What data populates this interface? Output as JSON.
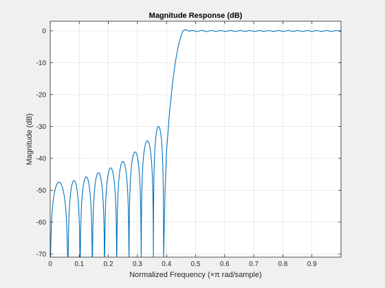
{
  "chart_data": {
    "type": "line",
    "title": "Magnitude Response (dB)",
    "xlabel": "Normalized Frequency (×π rad/sample)",
    "ylabel": "Magnitude (dB)",
    "xlim": [
      0,
      1
    ],
    "ylim": [
      -71,
      3
    ],
    "xticks": [
      0,
      0.1,
      0.2,
      0.3,
      0.4,
      0.5,
      0.6,
      0.7,
      0.8,
      0.9
    ],
    "xtick_labels": [
      "0",
      "0.1",
      "0.2",
      "0.3",
      "0.4",
      "0.5",
      "0.6",
      "0.7",
      "0.8",
      "0.9"
    ],
    "yticks": [
      0,
      -10,
      -20,
      -30,
      -40,
      -50,
      -60,
      -70
    ],
    "ytick_labels": [
      "0",
      "-10",
      "-20",
      "-30",
      "-40",
      "-50",
      "-60",
      "-70"
    ],
    "grid": true,
    "line_color": "#0072bd",
    "stopband_lobes": [
      {
        "x": [
          0.0,
          0.061
        ],
        "peak": -47.5
      },
      {
        "x": [
          0.061,
          0.103
        ],
        "peak": -47
      },
      {
        "x": [
          0.103,
          0.145
        ],
        "peak": -45.8
      },
      {
        "x": [
          0.145,
          0.187
        ],
        "peak": -44.5
      },
      {
        "x": [
          0.187,
          0.229
        ],
        "peak": -43
      },
      {
        "x": [
          0.229,
          0.271
        ],
        "peak": -41
      },
      {
        "x": [
          0.271,
          0.313
        ],
        "peak": -38
      },
      {
        "x": [
          0.313,
          0.355
        ],
        "peak": -34.5
      },
      {
        "x": [
          0.355,
          0.39
        ],
        "peak": -30
      }
    ],
    "transition": [
      [
        0.39,
        -71
      ],
      [
        0.395,
        -50
      ],
      [
        0.4,
        -38
      ],
      [
        0.41,
        -26
      ],
      [
        0.42,
        -17
      ],
      [
        0.43,
        -10
      ],
      [
        0.44,
        -5
      ],
      [
        0.45,
        -1.5
      ],
      [
        0.457,
        0
      ],
      [
        0.465,
        0.4
      ],
      [
        0.473,
        0.1
      ],
      [
        0.48,
        -0.2
      ]
    ],
    "passband_ripple_db": 0.15
  }
}
